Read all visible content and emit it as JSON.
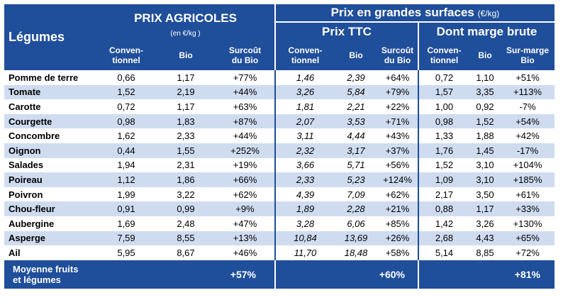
{
  "header": {
    "legumes": "Légumes",
    "prix_agricoles": "PRIX AGRICOLES",
    "prix_agricoles_unit": "(en €/kg )",
    "grandes_surfaces": "Prix en grandes surfaces",
    "grandes_surfaces_unit": "(€/kg)",
    "prix_ttc": "Prix TTC",
    "marge_brute": "Dont marge brute",
    "cols": {
      "agri_conv_1": "Conven-",
      "agri_conv_2": "tionnel",
      "agri_bio": "Bio",
      "agri_surcout_1": "Surcoût",
      "agri_surcout_2": "du Bio",
      "ttc_conv_1": "Conven-",
      "ttc_conv_2": "tionnel",
      "ttc_bio": "Bio",
      "ttc_surcout_1": "Surcoût",
      "ttc_surcout_2": "du Bio",
      "marge_conv_1": "Conven-",
      "marge_conv_2": "tionnel",
      "marge_bio": "Bio",
      "marge_sur_1": "Sur-marge",
      "marge_sur_2": "Bio"
    }
  },
  "rows": [
    {
      "name": "Pomme de terre",
      "v": [
        "0,66",
        "1,17",
        "+77%",
        "1,46",
        "2,39",
        "+64%",
        "0,72",
        "1,10",
        "+51%"
      ]
    },
    {
      "name": "Tomate",
      "v": [
        "1,52",
        "2,19",
        "+44%",
        "3,26",
        "5,84",
        "+79%",
        "1,57",
        "3,35",
        "+113%"
      ]
    },
    {
      "name": "Carotte",
      "v": [
        "0,72",
        "1,17",
        "+63%",
        "1,81",
        "2,21",
        "+22%",
        "1,00",
        "0,92",
        "-7%"
      ]
    },
    {
      "name": "Courgette",
      "v": [
        "0,98",
        "1,83",
        "+87%",
        "2,07",
        "3,53",
        "+71%",
        "0,98",
        "1,52",
        "+54%"
      ]
    },
    {
      "name": "Concombre",
      "v": [
        "1,62",
        "2,33",
        "+44%",
        "3,11",
        "4,44",
        "+43%",
        "1,33",
        "1,88",
        "+42%"
      ]
    },
    {
      "name": "Oignon",
      "v": [
        "0,44",
        "1,55",
        "+252%",
        "2,32",
        "3,17",
        "+37%",
        "1,76",
        "1,45",
        "-17%"
      ]
    },
    {
      "name": "Salades",
      "v": [
        "1,94",
        "2,31",
        "+19%",
        "3,66",
        "5,71",
        "+56%",
        "1,52",
        "3,10",
        "+104%"
      ]
    },
    {
      "name": "Poireau",
      "v": [
        "1,12",
        "1,86",
        "+66%",
        "2,33",
        "5,23",
        "+124%",
        "1,09",
        "3,10",
        "+185%"
      ]
    },
    {
      "name": "Poivron",
      "v": [
        "1,99",
        "3,22",
        "+62%",
        "4,39",
        "7,09",
        "+62%",
        "2,17",
        "3,50",
        "+61%"
      ]
    },
    {
      "name": "Chou-fleur",
      "v": [
        "0,91",
        "0,99",
        "+9%",
        "1,89",
        "2,28",
        "+21%",
        "0,88",
        "1,17",
        "+33%"
      ]
    },
    {
      "name": "Aubergine",
      "v": [
        "1,69",
        "2,48",
        "+47%",
        "3,28",
        "6,06",
        "+85%",
        "1,42",
        "3,26",
        "+130%"
      ]
    },
    {
      "name": "Asperge",
      "v": [
        "7,59",
        "8,55",
        "+13%",
        "10,84",
        "13,69",
        "+26%",
        "2,68",
        "4,43",
        "+65%"
      ]
    },
    {
      "name": "Ail",
      "v": [
        "5,95",
        "8,67",
        "+46%",
        "11,70",
        "18,48",
        "+58%",
        "5,14",
        "8,85",
        "+72%"
      ]
    }
  ],
  "footer": {
    "label_1": "Moyenne fruits",
    "label_2": "et légumes",
    "agri": "+57%",
    "ttc": "+60%",
    "marge": "+81%"
  },
  "colors": {
    "header_bg": "#1f4e9a",
    "row_alt": "#cfdcf0"
  }
}
